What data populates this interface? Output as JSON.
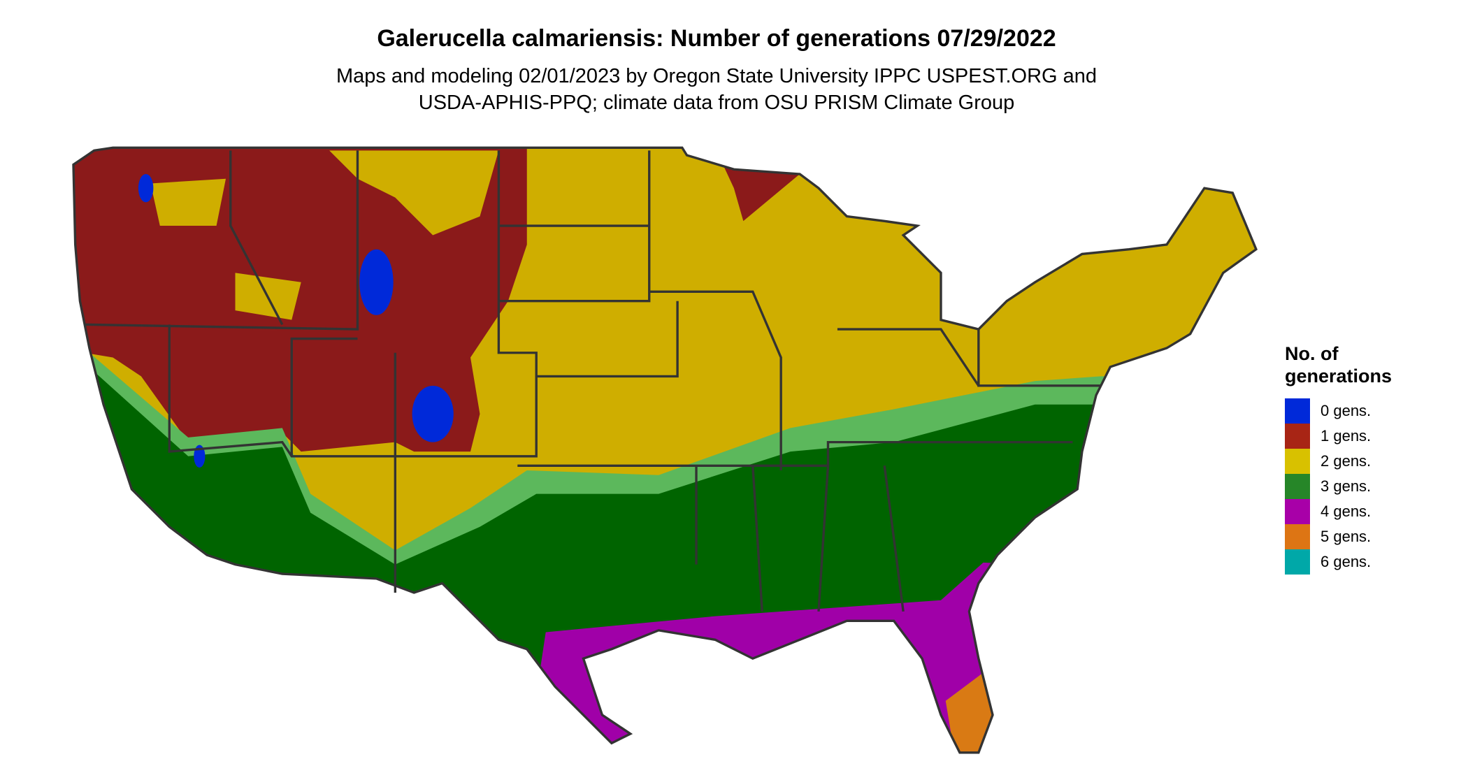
{
  "title": "Galerucella calmariensis: Number of generations 07/29/2022",
  "subtitle_line1": "Maps and modeling 02/01/2023 by Oregon State University IPPC USPEST.ORG and",
  "subtitle_line2": "USDA-APHIS-PPQ; climate data from OSU PRISM Climate Group",
  "chart_data": {
    "type": "heatmap",
    "region": "Contiguous United States",
    "legend": {
      "title_line1": "No. of",
      "title_line2": "generations",
      "placement": "right",
      "entries": [
        {
          "label": "0 gens.",
          "color": "#0029d9"
        },
        {
          "label": "1 gens.",
          "color": "#a82515"
        },
        {
          "label": "2 gens.",
          "color": "#d8c100"
        },
        {
          "label": "3 gens.",
          "color": "#268628"
        },
        {
          "label": "4 gens.",
          "color": "#a800a8"
        },
        {
          "label": "5 gens.",
          "color": "#dd7514"
        },
        {
          "label": "6 gens.",
          "color": "#00a8a8"
        }
      ]
    }
  }
}
